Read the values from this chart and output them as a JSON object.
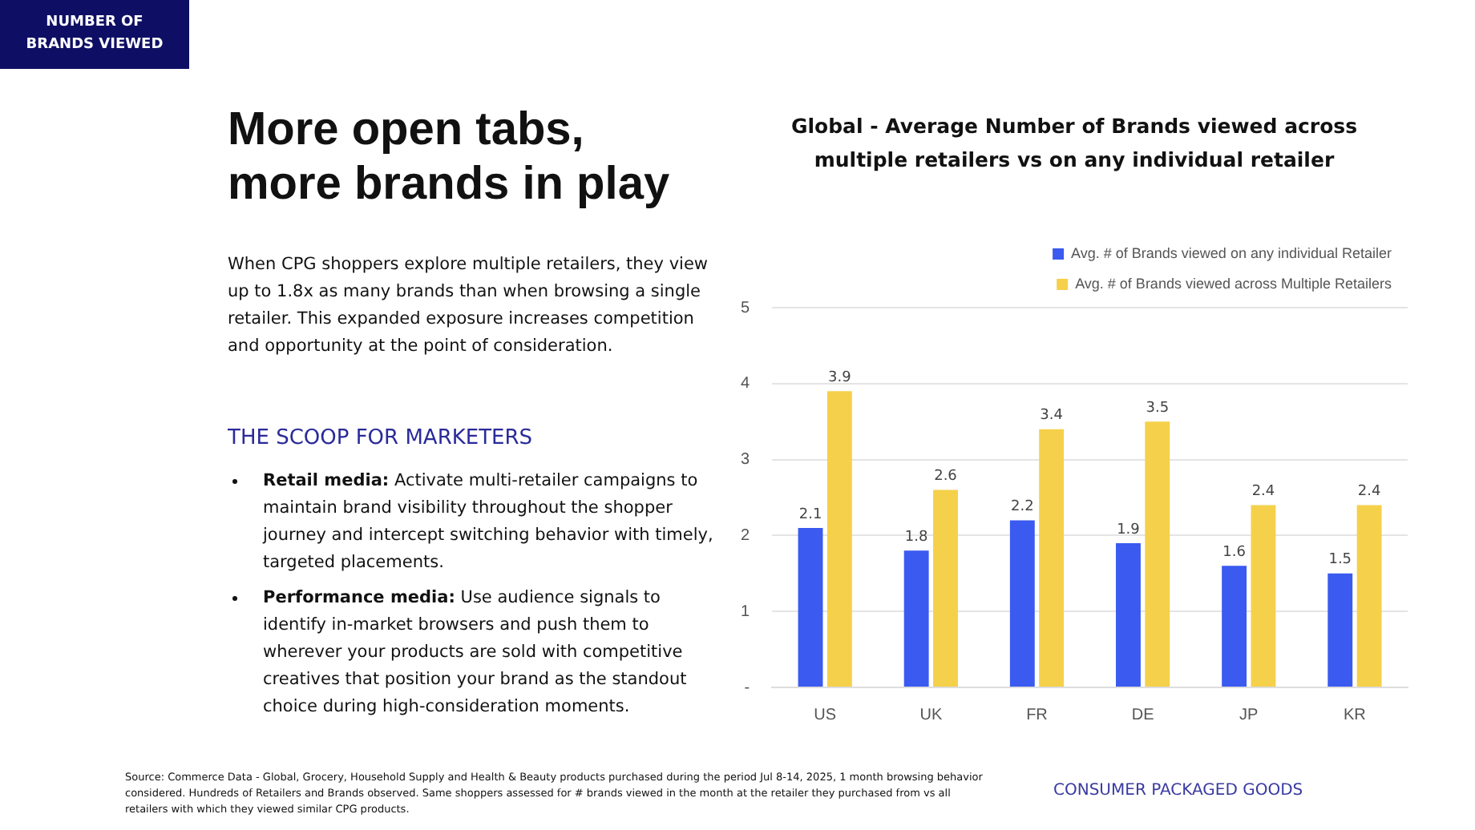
{
  "chart_data": {
    "type": "bar",
    "title": "Global - Average Number of Brands viewed across multiple retailers vs on any individual retailer",
    "categories": [
      "US",
      "UK",
      "FR",
      "DE",
      "JP",
      "KR"
    ],
    "series": [
      {
        "name": "Avg. # of Brands viewed on any individual Retailer",
        "color": "#3a5af0",
        "values": [
          2.1,
          1.8,
          2.2,
          1.9,
          1.6,
          1.5
        ]
      },
      {
        "name": "Avg. # of Brands viewed across Multiple Retailers",
        "color": "#f5d04a",
        "values": [
          3.9,
          2.6,
          3.4,
          3.5,
          2.4,
          2.4
        ]
      }
    ],
    "ylim": [
      0,
      5
    ],
    "yticks": [
      {
        "value": 0,
        "label": "-"
      },
      1,
      2,
      3,
      4,
      5
    ],
    "grid": "y",
    "legend": "top right",
    "data_labels": true,
    "annotations": [
      "NUMBER OF BRANDS VIEWED",
      "More open tabs, more brands in play",
      "When CPG shoppers explore multiple retailers, they view up to 1.8x as many brands than when browsing a single retailer. This expanded exposure increases competition and opportunity at the point of consideration.",
      "THE SCOOP FOR MARKETERS",
      "Retail media: Activate multi-retailer campaigns to maintain brand visibility throughout the shopper journey and intercept switching behavior with timely, targeted placements.",
      "Performance media: Use audience signals to identify in-market browsers and push them to wherever your products are sold with competitive creatives that position your brand as the standout choice during high-consideration moments.",
      "Source: Commerce Data - Global, Grocery, Household Supply and Health & Beauty products purchased during the period Jul 8-14, 2025, 1 month browsing behavior considered. Hundreds of Retailers and Brands observed. Same shoppers assessed for # brands viewed in the month at the retailer they purchased from vs all retailers with which they viewed similar CPG products.",
      "CONSUMER PACKAGED GOODS"
    ]
  }
}
